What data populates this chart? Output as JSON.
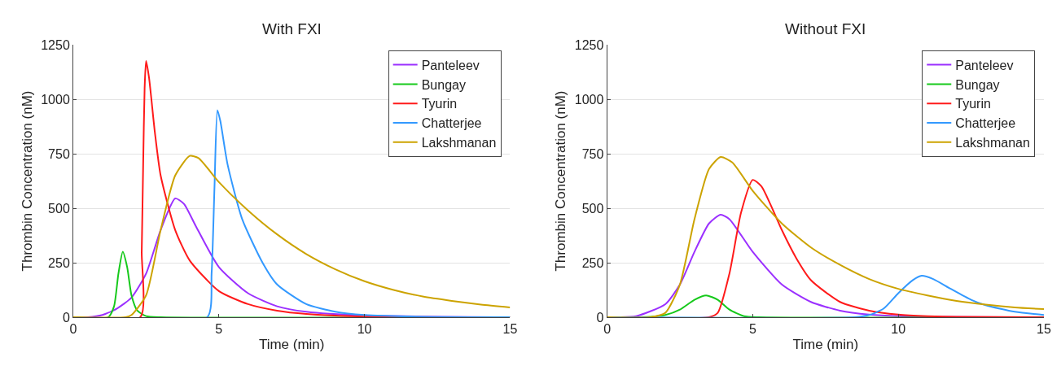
{
  "chart_data": [
    {
      "type": "line",
      "title": "With FXI",
      "xlabel": "Time (min)",
      "ylabel": "Thrombin Concentration (nM)",
      "xlim": [
        0,
        15
      ],
      "xticks": [
        0,
        5,
        10,
        15
      ],
      "ylim": [
        0,
        1250
      ],
      "yticks": [
        0,
        250,
        500,
        750,
        1000,
        1250
      ],
      "grid": "y",
      "legend": "top right",
      "line_style": "solid",
      "series": [
        {
          "name": "Panteleev",
          "color": "#9b30ff",
          "x": [
            0,
            0.5,
            1,
            1.5,
            2,
            2.5,
            3,
            3.5,
            3.8,
            4.2,
            5,
            6,
            7,
            8,
            10,
            15
          ],
          "values": [
            0,
            0,
            10,
            40,
            90,
            200,
            400,
            545,
            520,
            420,
            230,
            110,
            50,
            25,
            8,
            0
          ]
        },
        {
          "name": "Bungay",
          "color": "#16c91b",
          "x": [
            0,
            1.2,
            1.4,
            1.55,
            1.7,
            1.85,
            2,
            2.2,
            2.5,
            3,
            15
          ],
          "values": [
            0,
            0,
            50,
            200,
            300,
            230,
            100,
            30,
            5,
            0,
            0
          ]
        },
        {
          "name": "Tyurin",
          "color": "#ff1a1a",
          "x": [
            0,
            2.3,
            2.35,
            2.4,
            2.45,
            2.5,
            2.6,
            2.8,
            3,
            3.5,
            4,
            5,
            6,
            7,
            8,
            10,
            15
          ],
          "values": [
            0,
            0,
            300,
            700,
            1050,
            1175,
            1100,
            850,
            650,
            400,
            260,
            120,
            60,
            30,
            15,
            3,
            0
          ]
        },
        {
          "name": "Chatterjee",
          "color": "#3399ff",
          "x": [
            0,
            4.6,
            4.75,
            4.85,
            4.95,
            5.05,
            5.3,
            5.8,
            6.5,
            7,
            8,
            9,
            10,
            12,
            15
          ],
          "values": [
            0,
            0,
            200,
            600,
            950,
            900,
            700,
            450,
            250,
            150,
            60,
            25,
            10,
            2,
            0
          ]
        },
        {
          "name": "Lakshmanan",
          "color": "#cca300",
          "x": [
            0,
            1.8,
            2,
            2.5,
            3,
            3.5,
            4,
            4.3,
            5,
            6,
            7,
            8,
            9,
            10,
            11,
            12,
            13,
            14,
            15
          ],
          "values": [
            0,
            0,
            10,
            100,
            400,
            650,
            740,
            730,
            620,
            490,
            380,
            290,
            220,
            165,
            125,
            95,
            75,
            58,
            45
          ]
        }
      ]
    },
    {
      "type": "line",
      "title": "Without FXI",
      "xlabel": "Time (min)",
      "ylabel": "Thrombin Concentration (nM)",
      "xlim": [
        0,
        15
      ],
      "xticks": [
        0,
        5,
        10,
        15
      ],
      "ylim": [
        0,
        1250
      ],
      "yticks": [
        0,
        250,
        500,
        750,
        1000,
        1250
      ],
      "grid": "y",
      "legend": "top right",
      "line_style": "solid",
      "series": [
        {
          "name": "Panteleev",
          "color": "#9b30ff",
          "x": [
            0,
            1,
            2,
            2.5,
            3,
            3.5,
            3.9,
            4.2,
            5,
            6,
            7,
            8,
            9,
            10,
            15
          ],
          "values": [
            0,
            5,
            60,
            150,
            300,
            430,
            470,
            450,
            300,
            150,
            70,
            30,
            12,
            5,
            0
          ]
        },
        {
          "name": "Bungay",
          "color": "#16c91b",
          "x": [
            0,
            1.5,
            2,
            2.5,
            3,
            3.4,
            3.8,
            4.2,
            4.7,
            5.2,
            15
          ],
          "values": [
            0,
            2,
            10,
            35,
            80,
            100,
            80,
            35,
            5,
            0,
            0
          ]
        },
        {
          "name": "Tyurin",
          "color": "#ff1a1a",
          "x": [
            0,
            3.5,
            3.8,
            4.2,
            4.6,
            5,
            5.3,
            5.6,
            6,
            6.5,
            7,
            8,
            9,
            10,
            11,
            12,
            15
          ],
          "values": [
            0,
            0,
            20,
            200,
            480,
            630,
            600,
            520,
            400,
            270,
            170,
            70,
            30,
            12,
            5,
            2,
            0
          ]
        },
        {
          "name": "Chatterjee",
          "color": "#3399ff",
          "x": [
            0,
            8.5,
            9,
            9.5,
            10,
            10.5,
            10.8,
            11.2,
            11.8,
            12.5,
            13,
            14,
            15
          ],
          "values": [
            0,
            0,
            10,
            40,
            110,
            170,
            190,
            175,
            130,
            80,
            55,
            25,
            10
          ]
        },
        {
          "name": "Lakshmanan",
          "color": "#cca300",
          "x": [
            0,
            1.5,
            2,
            2.5,
            3,
            3.5,
            3.9,
            4.3,
            5,
            6,
            7,
            8,
            9,
            10,
            11,
            12,
            13,
            14,
            15
          ],
          "values": [
            0,
            0,
            20,
            150,
            450,
            680,
            735,
            710,
            580,
            430,
            320,
            240,
            175,
            130,
            100,
            75,
            58,
            45,
            37
          ]
        }
      ]
    }
  ]
}
